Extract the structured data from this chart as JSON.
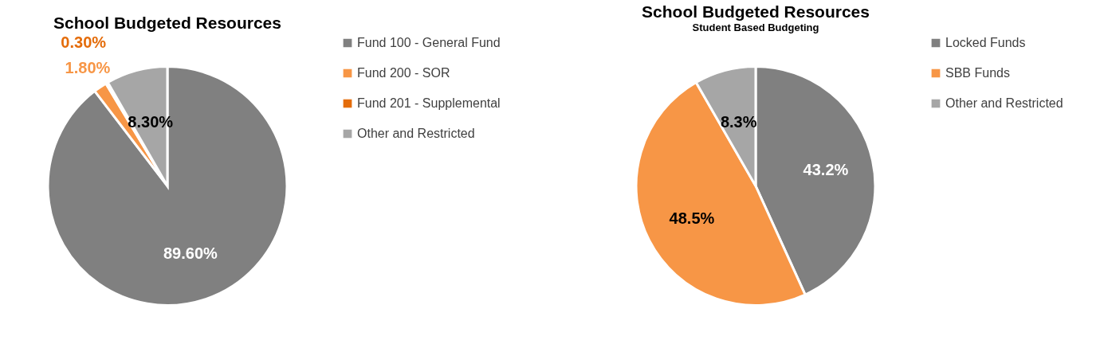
{
  "chart_data": [
    {
      "type": "pie",
      "title": "School Budgeted Resources",
      "categories": [
        "Fund 100 - General Fund",
        "Fund 200 - SOR",
        "Fund 201 - Supplemental",
        "Other and Restricted"
      ],
      "values": [
        89.6,
        1.8,
        0.3,
        8.3
      ],
      "colors": [
        "#808080",
        "#f79646",
        "#e46c0a",
        "#a6a6a6"
      ],
      "value_labels": [
        "89.60%",
        "1.80%",
        "0.30%",
        "8.30%"
      ],
      "legend": "right"
    },
    {
      "type": "pie",
      "title": "School Budgeted Resources",
      "subtitle": "Student Based Budgeting",
      "categories": [
        "Locked Funds",
        "SBB Funds",
        "Other and Restricted"
      ],
      "values": [
        43.2,
        48.5,
        8.3
      ],
      "colors": [
        "#808080",
        "#f79646",
        "#a6a6a6"
      ],
      "value_labels": [
        "43.2%",
        "48.5%",
        "8.3%"
      ],
      "legend": "right"
    }
  ]
}
